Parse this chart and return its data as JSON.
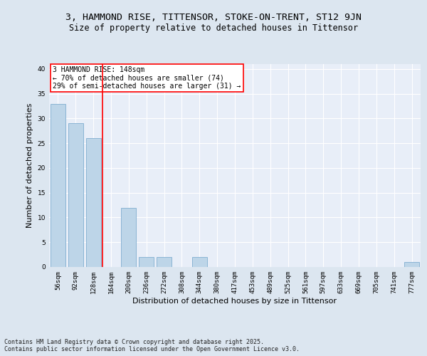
{
  "title": "3, HAMMOND RISE, TITTENSOR, STOKE-ON-TRENT, ST12 9JN",
  "subtitle": "Size of property relative to detached houses in Tittensor",
  "xlabel": "Distribution of detached houses by size in Tittensor",
  "ylabel": "Number of detached properties",
  "categories": [
    "56sqm",
    "92sqm",
    "128sqm",
    "164sqm",
    "200sqm",
    "236sqm",
    "272sqm",
    "308sqm",
    "344sqm",
    "380sqm",
    "417sqm",
    "453sqm",
    "489sqm",
    "525sqm",
    "561sqm",
    "597sqm",
    "633sqm",
    "669sqm",
    "705sqm",
    "741sqm",
    "777sqm"
  ],
  "values": [
    33,
    29,
    26,
    0,
    12,
    2,
    2,
    0,
    2,
    0,
    0,
    0,
    0,
    0,
    0,
    0,
    0,
    0,
    0,
    0,
    1
  ],
  "bar_color": "#bdd5e8",
  "bar_edge_color": "#8ab4d4",
  "vline_x": 2.5,
  "vline_color": "red",
  "annotation_text": "3 HAMMOND RISE: 148sqm\n← 70% of detached houses are smaller (74)\n29% of semi-detached houses are larger (31) →",
  "annotation_box_color": "white",
  "annotation_box_edge": "red",
  "ylim": [
    0,
    41
  ],
  "yticks": [
    0,
    5,
    10,
    15,
    20,
    25,
    30,
    35,
    40
  ],
  "background_color": "#dce6f0",
  "plot_background": "#e8eef8",
  "footer": "Contains HM Land Registry data © Crown copyright and database right 2025.\nContains public sector information licensed under the Open Government Licence v3.0.",
  "title_fontsize": 9.5,
  "subtitle_fontsize": 8.5,
  "xlabel_fontsize": 8,
  "ylabel_fontsize": 8,
  "annot_fontsize": 7,
  "tick_fontsize": 6.5,
  "footer_fontsize": 6
}
